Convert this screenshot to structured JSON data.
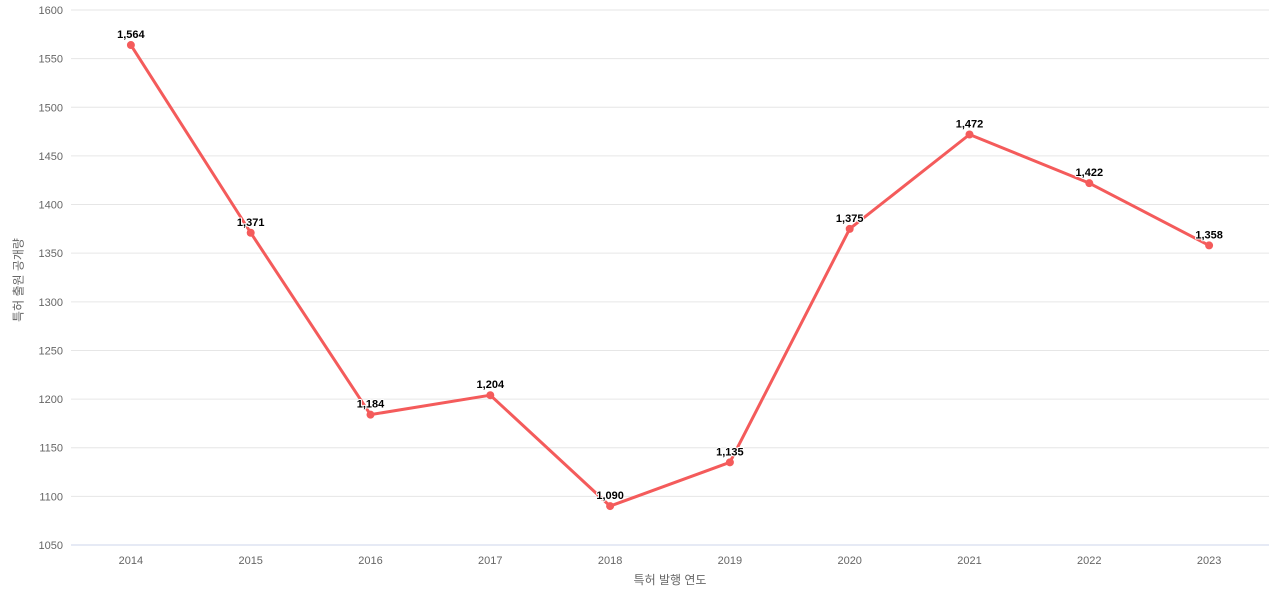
{
  "chart_data": {
    "type": "line",
    "title": "",
    "xlabel": "특허 발행 연도",
    "ylabel": "특허 출원 공개량",
    "categories": [
      "2014",
      "2015",
      "2016",
      "2017",
      "2018",
      "2019",
      "2020",
      "2021",
      "2022",
      "2023"
    ],
    "series": [
      {
        "name": "특허 출원 공개량",
        "color": "#f45b5b",
        "values": [
          1564,
          1371,
          1184,
          1204,
          1090,
          1135,
          1375,
          1472,
          1422,
          1358
        ],
        "point_labels": [
          "1,564",
          "1,371",
          "1,184",
          "1,204",
          "1,090",
          "1,135",
          "1,375",
          "1,472",
          "1,422",
          "1,358"
        ]
      }
    ],
    "ylim": [
      1050,
      1600
    ],
    "ytick_interval": 50,
    "ytick_labels": [
      "1050",
      "1100",
      "1150",
      "1200",
      "1250",
      "1300",
      "1350",
      "1400",
      "1450",
      "1500",
      "1550",
      "1600"
    ],
    "grid": true,
    "legend": "none",
    "colors": {
      "gridline": "#e6e6e6",
      "axis_line": "#ccd6eb",
      "tick_label": "#666666",
      "axis_title": "#666666",
      "data_label": "#000000",
      "background": "#ffffff"
    }
  }
}
